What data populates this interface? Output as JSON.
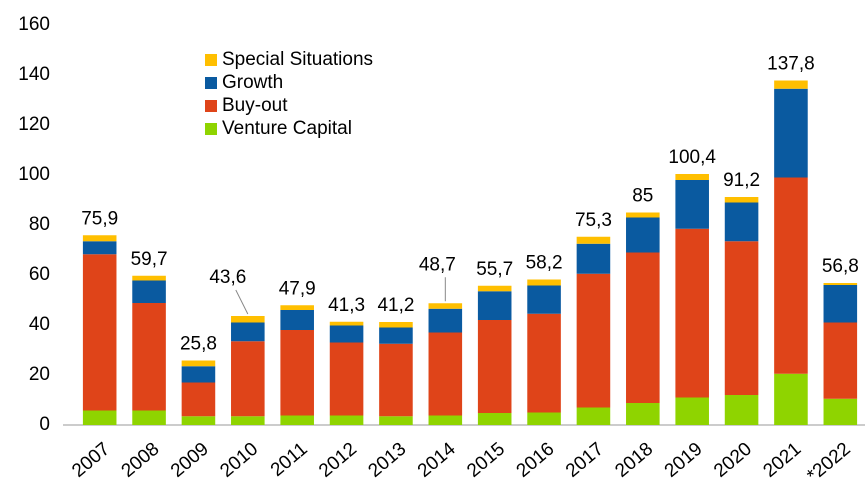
{
  "chart_data": {
    "type": "stacked-bar",
    "categories": [
      "2007",
      "2008",
      "2009",
      "2010",
      "2011",
      "2012",
      "2013",
      "2014",
      "2015",
      "2016",
      "2017",
      "2018",
      "2019",
      "2020",
      "2021",
      "*2022"
    ],
    "series": [
      {
        "name": "Venture Capital",
        "color": "#8fd400",
        "values": [
          5.8,
          5.8,
          3.5,
          3.5,
          3.8,
          3.8,
          3.5,
          3.8,
          4.8,
          5,
          7,
          8.8,
          11,
          12,
          20.5,
          10.5
        ]
      },
      {
        "name": "Buy-out",
        "color": "#df4419",
        "values": [
          62.5,
          43,
          13.5,
          30,
          34.2,
          29.2,
          29,
          33.2,
          37.2,
          39.5,
          53.5,
          60.2,
          67.5,
          61.5,
          78.5,
          30.5
        ]
      },
      {
        "name": "Growth",
        "color": "#0a5aa0",
        "values": [
          5.2,
          9,
          6.5,
          7.5,
          8,
          6.8,
          6.5,
          9.5,
          11.5,
          11.3,
          12,
          14,
          19.5,
          15.5,
          35.5,
          15
        ]
      },
      {
        "name": "Special Situations",
        "color": "#ffbf00",
        "values": [
          2.4,
          1.9,
          2.3,
          2.6,
          1.9,
          1.5,
          2.2,
          2.2,
          2.2,
          2.4,
          2.8,
          2,
          2.4,
          2.2,
          3.3,
          0.8
        ]
      }
    ],
    "totals": [
      75.9,
      59.7,
      25.8,
      43.6,
      47.9,
      41.3,
      41.2,
      48.7,
      55.7,
      58.2,
      75.3,
      85,
      100.4,
      91.2,
      137.8,
      56.8
    ],
    "total_labels": [
      "75,9",
      "59,7",
      "25,8",
      "43,6",
      "47,9",
      "41,3",
      "41,2",
      "48,7",
      "55,7",
      "58,2",
      "75,3",
      "85",
      "100,4",
      "91,2",
      "137,8",
      "56,8"
    ],
    "ylim": [
      0,
      160
    ],
    "yticks": [
      0,
      20,
      40,
      60,
      80,
      100,
      120,
      140,
      160
    ],
    "grid": false,
    "legend": "upper left"
  }
}
